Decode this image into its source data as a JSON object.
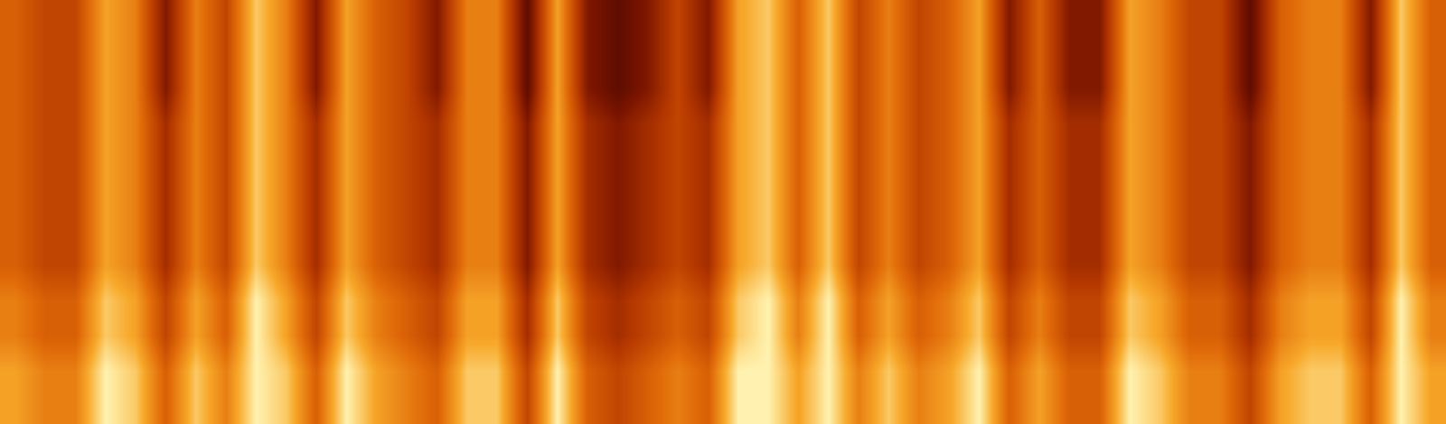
{
  "chart_data": {
    "type": "heatmap",
    "tick_labels": false,
    "grid": false,
    "zlim": [
      0,
      9
    ],
    "cells": [
      [
        7,
        6,
        6,
        9,
        8,
        5,
        8,
        6,
        9,
        8,
        5,
        9,
        7,
        6,
        5,
        8,
        8,
        4,
        9,
        5,
        4,
        5,
        6,
        5,
        9,
        9,
        7,
        9,
        6,
        8,
        6,
        7,
        9,
        5,
        7,
        5,
        5,
        9,
        8,
        6,
        6,
        4,
        7,
        8,
        8,
        5,
        9,
        7
      ],
      [
        7,
        6,
        6,
        9,
        8,
        5,
        8,
        6,
        9,
        8,
        5,
        9,
        7,
        6,
        5,
        8,
        8,
        4,
        9,
        5,
        4,
        5,
        6,
        5,
        9,
        9,
        7,
        9,
        6,
        8,
        6,
        7,
        9,
        5,
        7,
        5,
        5,
        9,
        8,
        6,
        6,
        4,
        7,
        8,
        8,
        5,
        9,
        7
      ],
      [
        6,
        5,
        5,
        8,
        7,
        4,
        7,
        5,
        9,
        7,
        4,
        8,
        6,
        5,
        4,
        7,
        7,
        3,
        8,
        4,
        3,
        4,
        5,
        4,
        8,
        9,
        6,
        9,
        5,
        7,
        5,
        6,
        8,
        4,
        6,
        4,
        4,
        8,
        7,
        5,
        5,
        3,
        6,
        7,
        7,
        4,
        9,
        6
      ],
      [
        6,
        5,
        5,
        8,
        7,
        4,
        7,
        5,
        9,
        7,
        4,
        8,
        6,
        5,
        4,
        7,
        7,
        3,
        8,
        4,
        3,
        4,
        5,
        4,
        8,
        9,
        6,
        9,
        5,
        7,
        5,
        6,
        8,
        4,
        6,
        4,
        4,
        8,
        7,
        5,
        5,
        3,
        6,
        7,
        7,
        4,
        9,
        6
      ],
      [
        5,
        4,
        4,
        7,
        6,
        3,
        6,
        4,
        8,
        6,
        3,
        7,
        5,
        4,
        3,
        6,
        6,
        2,
        7,
        3,
        2,
        3,
        4,
        3,
        7,
        8,
        5,
        8,
        4,
        6,
        4,
        5,
        7,
        3,
        5,
        3,
        3,
        7,
        6,
        4,
        4,
        2,
        5,
        6,
        6,
        3,
        8,
        5
      ],
      [
        5,
        4,
        4,
        7,
        6,
        3,
        6,
        4,
        8,
        6,
        3,
        7,
        5,
        4,
        3,
        6,
        6,
        2,
        7,
        3,
        2,
        3,
        4,
        3,
        7,
        8,
        5,
        8,
        4,
        6,
        4,
        5,
        7,
        3,
        5,
        3,
        3,
        7,
        6,
        4,
        4,
        2,
        5,
        6,
        6,
        3,
        8,
        5
      ],
      [
        5,
        4,
        4,
        7,
        6,
        3,
        6,
        4,
        8,
        6,
        3,
        7,
        5,
        4,
        3,
        6,
        6,
        2,
        7,
        3,
        2,
        3,
        4,
        3,
        7,
        8,
        5,
        8,
        4,
        6,
        4,
        5,
        7,
        3,
        5,
        3,
        3,
        7,
        6,
        4,
        4,
        2,
        5,
        6,
        6,
        3,
        8,
        5
      ],
      [
        5,
        4,
        4,
        7,
        6,
        3,
        6,
        4,
        8,
        6,
        3,
        7,
        5,
        4,
        3,
        6,
        6,
        2,
        7,
        3,
        2,
        3,
        4,
        3,
        7,
        8,
        5,
        8,
        4,
        6,
        4,
        5,
        7,
        3,
        5,
        3,
        3,
        7,
        6,
        4,
        4,
        2,
        5,
        6,
        6,
        3,
        8,
        5
      ],
      [
        5,
        4,
        4,
        7,
        6,
        3,
        6,
        4,
        8,
        6,
        3,
        7,
        5,
        4,
        3,
        6,
        6,
        2,
        7,
        3,
        2,
        3,
        4,
        3,
        7,
        8,
        5,
        8,
        4,
        6,
        4,
        5,
        7,
        3,
        5,
        3,
        3,
        7,
        6,
        4,
        4,
        2,
        5,
        6,
        6,
        3,
        8,
        5
      ],
      [
        5,
        4,
        4,
        7,
        6,
        2,
        6,
        4,
        8,
        6,
        2,
        7,
        5,
        4,
        2,
        6,
        6,
        1,
        7,
        2,
        1,
        2,
        4,
        2,
        7,
        8,
        5,
        8,
        4,
        6,
        4,
        5,
        7,
        2,
        5,
        2,
        2,
        7,
        6,
        4,
        4,
        1,
        5,
        6,
        6,
        2,
        8,
        5
      ],
      [
        5,
        4,
        4,
        7,
        6,
        2,
        6,
        4,
        8,
        6,
        2,
        7,
        5,
        4,
        2,
        6,
        6,
        1,
        7,
        2,
        1,
        2,
        4,
        2,
        7,
        8,
        5,
        8,
        4,
        6,
        4,
        5,
        7,
        2,
        5,
        2,
        2,
        7,
        6,
        4,
        4,
        1,
        5,
        6,
        6,
        2,
        8,
        5
      ],
      [
        5,
        4,
        4,
        7,
        6,
        2,
        6,
        4,
        8,
        6,
        2,
        7,
        5,
        4,
        2,
        6,
        6,
        1,
        7,
        2,
        1,
        2,
        4,
        2,
        7,
        8,
        5,
        8,
        4,
        6,
        4,
        5,
        7,
        2,
        5,
        2,
        2,
        7,
        6,
        4,
        4,
        1,
        5,
        6,
        6,
        2,
        8,
        5
      ]
    ]
  }
}
